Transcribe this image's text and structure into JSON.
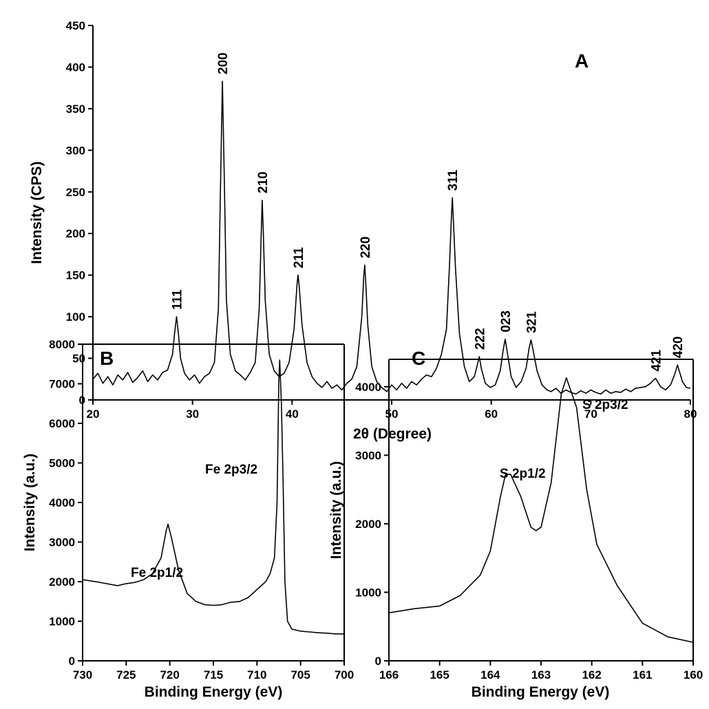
{
  "chart_data": [
    {
      "type": "line",
      "title": "A",
      "x_label": "2θ (Degree)",
      "y_label": "Intensity (CPS)",
      "xlim": [
        20,
        80
      ],
      "xticks": [
        20,
        30,
        40,
        50,
        60,
        70,
        80
      ],
      "ylim": [
        0,
        450
      ],
      "yticks": [
        0,
        50,
        100,
        150,
        200,
        250,
        300,
        350,
        400,
        450
      ],
      "color": "#000000",
      "x": [
        20,
        20.5,
        21,
        21.5,
        22,
        22.5,
        23,
        23.5,
        24,
        24.5,
        25,
        25.5,
        26,
        26.5,
        27,
        27.5,
        28,
        28.2,
        28.4,
        28.6,
        28.8,
        29.2,
        29.7,
        30.2,
        30.7,
        31.2,
        31.7,
        32.2,
        32.6,
        32.8,
        33,
        33.2,
        33.4,
        33.8,
        34.3,
        34.8,
        35.3,
        35.8,
        36.3,
        36.7,
        36.9,
        37,
        37.1,
        37.3,
        37.7,
        38.2,
        38.7,
        39.2,
        39.7,
        40.2,
        40.5,
        40.6,
        40.7,
        41,
        41.5,
        42,
        42.5,
        43,
        43.5,
        44,
        44.5,
        45,
        45.5,
        46,
        46.5,
        47,
        47.2,
        47.3,
        47.4,
        47.6,
        48,
        48.5,
        49,
        49.5,
        50,
        50.5,
        51,
        51.5,
        52,
        52.5,
        53,
        53.5,
        54,
        54.5,
        55,
        55.5,
        55.8,
        56,
        56.1,
        56.2,
        56.4,
        56.8,
        57.3,
        57.8,
        58.3,
        58.6,
        58.8,
        59,
        59.4,
        59.9,
        60.4,
        60.9,
        61.2,
        61.4,
        61.6,
        62,
        62.5,
        63,
        63.5,
        63.8,
        64,
        64.2,
        64.6,
        65.1,
        65.6,
        66,
        66.5,
        67,
        67.5,
        68,
        68.5,
        69,
        69.5,
        70,
        70.5,
        71,
        71.5,
        72,
        72.5,
        73,
        73.5,
        74,
        74.5,
        75,
        75.5,
        76,
        76.3,
        76.5,
        76.7,
        77,
        77.5,
        78,
        78.4,
        78.7,
        78.9,
        79.2,
        79.6,
        80
      ],
      "values": [
        25,
        32,
        20,
        28,
        18,
        30,
        24,
        33,
        21,
        27,
        35,
        22,
        30,
        24,
        33,
        36,
        55,
        80,
        100,
        78,
        50,
        32,
        24,
        30,
        20,
        28,
        32,
        45,
        110,
        250,
        383,
        260,
        120,
        55,
        35,
        30,
        24,
        33,
        45,
        110,
        200,
        240,
        205,
        120,
        55,
        35,
        28,
        32,
        45,
        85,
        140,
        150,
        138,
        90,
        45,
        28,
        20,
        15,
        22,
        14,
        18,
        12,
        20,
        25,
        40,
        100,
        150,
        162,
        140,
        90,
        40,
        22,
        15,
        10,
        18,
        12,
        20,
        14,
        22,
        18,
        25,
        30,
        28,
        38,
        55,
        85,
        160,
        220,
        243,
        215,
        160,
        80,
        40,
        22,
        28,
        42,
        52,
        38,
        20,
        15,
        18,
        35,
        60,
        73,
        58,
        28,
        15,
        22,
        38,
        62,
        72,
        60,
        35,
        18,
        12,
        10,
        14,
        8,
        12,
        9,
        7,
        11,
        8,
        12,
        9,
        7,
        12,
        8,
        10,
        9,
        13,
        10,
        14,
        15,
        16,
        20,
        24,
        26,
        22,
        16,
        12,
        18,
        30,
        42,
        34,
        22,
        15,
        14
      ],
      "annotations": [
        {
          "text": "111",
          "x": 28.4
        },
        {
          "text": "200",
          "x": 33
        },
        {
          "text": "210",
          "x": 37
        },
        {
          "text": "211",
          "x": 40.6
        },
        {
          "text": "220",
          "x": 47.3
        },
        {
          "text": "311",
          "x": 56.1
        },
        {
          "text": "222",
          "x": 58.8
        },
        {
          "text": "023",
          "x": 61.4
        },
        {
          "text": "321",
          "x": 64
        },
        {
          "text": "421",
          "x": 76.5
        },
        {
          "text": "420",
          "x": 78.7
        }
      ]
    },
    {
      "type": "line",
      "title": "B",
      "x_label": "Binding Energy (eV)",
      "y_label": "Intensity (a.u.)",
      "xlim": [
        730,
        700
      ],
      "xticks": [
        730,
        725,
        720,
        715,
        710,
        705,
        700
      ],
      "ylim": [
        0,
        8000
      ],
      "yticks": [
        0,
        1000,
        2000,
        3000,
        4000,
        5000,
        6000,
        7000,
        8000
      ],
      "color": "#000000",
      "x": [
        730,
        728,
        726,
        725,
        724,
        723,
        722,
        721,
        720.4,
        720.2,
        719.8,
        719,
        718,
        717,
        716,
        715,
        714,
        713,
        712,
        711,
        710,
        709,
        708.5,
        708,
        707.7,
        707.5,
        707.4,
        707.2,
        707,
        706.8,
        706.5,
        706,
        705,
        704,
        703,
        702,
        701,
        700
      ],
      "values": [
        2050,
        1980,
        1900,
        1950,
        1980,
        2050,
        2200,
        2600,
        3300,
        3450,
        3100,
        2300,
        1700,
        1500,
        1420,
        1400,
        1420,
        1480,
        1500,
        1600,
        1800,
        2000,
        2200,
        2600,
        4000,
        7000,
        7600,
        6500,
        4500,
        2000,
        1000,
        800,
        750,
        730,
        710,
        700,
        680,
        680
      ],
      "annotations": [
        {
          "text": "Fe 2p1/2"
        },
        {
          "text": "Fe 2p3/2"
        }
      ]
    },
    {
      "type": "line",
      "title": "C",
      "x_label": "Binding Energy (eV)",
      "y_label": "Intensity (a.u.)",
      "xlim": [
        166,
        160
      ],
      "xticks": [
        166,
        165,
        164,
        163,
        162,
        161,
        160
      ],
      "ylim": [
        0,
        4400
      ],
      "yticks": [
        0,
        1000,
        2000,
        3000,
        4000
      ],
      "color": "#000000",
      "x": [
        166,
        165.5,
        165,
        164.6,
        164.2,
        164,
        163.8,
        163.7,
        163.6,
        163.4,
        163.2,
        163.1,
        163,
        162.8,
        162.6,
        162.5,
        162.3,
        162.1,
        161.9,
        161.5,
        161,
        160.5,
        160
      ],
      "values": [
        700,
        760,
        800,
        950,
        1250,
        1600,
        2400,
        2720,
        2720,
        2400,
        1950,
        1900,
        1950,
        2600,
        3900,
        4130,
        3700,
        2500,
        1700,
        1100,
        550,
        350,
        270
      ],
      "annotations": [
        {
          "text": "S 2p1/2"
        },
        {
          "text": "S 2p3/2"
        }
      ]
    }
  ]
}
